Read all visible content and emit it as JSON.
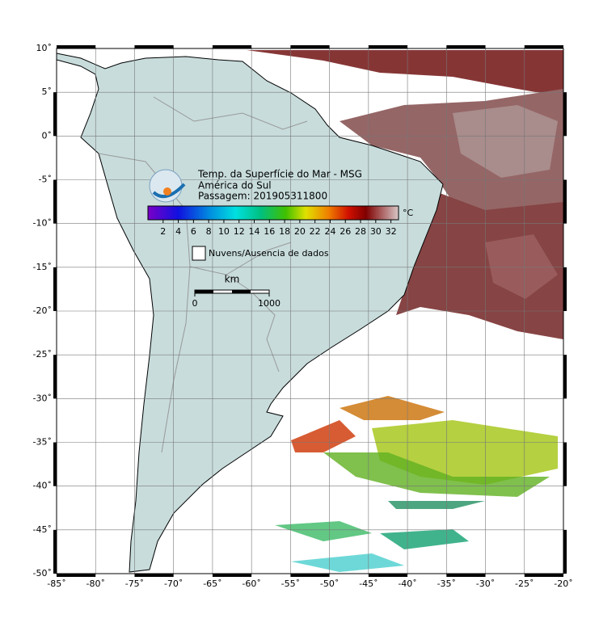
{
  "map": {
    "title": "Temp. da Superfície do Mar - MSG",
    "subtitle": "América do Sul",
    "pass": "Passagem: 201905311800",
    "lonlim": [
      -85,
      -20
    ],
    "latlim": [
      -50,
      10
    ],
    "lon_ticks": [
      {
        "value": -85,
        "label": "-85˚"
      },
      {
        "value": -80,
        "label": "-80˚"
      },
      {
        "value": -75,
        "label": "-75˚"
      },
      {
        "value": -70,
        "label": "-70˚"
      },
      {
        "value": -65,
        "label": "-65˚"
      },
      {
        "value": -60,
        "label": "-60˚"
      },
      {
        "value": -55,
        "label": "-55˚"
      },
      {
        "value": -50,
        "label": "-50˚"
      },
      {
        "value": -45,
        "label": "-45˚"
      },
      {
        "value": -40,
        "label": "-40˚"
      },
      {
        "value": -35,
        "label": "-35˚"
      },
      {
        "value": -30,
        "label": "-30˚"
      },
      {
        "value": -25,
        "label": "-25˚"
      },
      {
        "value": -20,
        "label": "-20˚"
      }
    ],
    "lat_ticks": [
      {
        "value": 10,
        "label": "10˚"
      },
      {
        "value": 5,
        "label": "5˚"
      },
      {
        "value": 0,
        "label": "0˚"
      },
      {
        "value": -5,
        "label": "-5˚"
      },
      {
        "value": -10,
        "label": "-10˚"
      },
      {
        "value": -15,
        "label": "-15˚"
      },
      {
        "value": -20,
        "label": "-20˚"
      },
      {
        "value": -25,
        "label": "-25˚"
      },
      {
        "value": -30,
        "label": "-30˚"
      },
      {
        "value": -35,
        "label": "-35˚"
      },
      {
        "value": -40,
        "label": "-40˚"
      },
      {
        "value": -45,
        "label": "-45˚"
      },
      {
        "value": -50,
        "label": "-50˚"
      }
    ],
    "colorbar": {
      "unit": "°C",
      "lim": [
        0,
        33
      ],
      "ticks": [
        2,
        4,
        6,
        8,
        10,
        12,
        14,
        16,
        18,
        20,
        22,
        24,
        26,
        28,
        30,
        32
      ]
    },
    "legend": "Nuvens/Ausencia de dados",
    "scale": {
      "unit": "km",
      "ticks": [
        0,
        1000
      ]
    }
  }
}
